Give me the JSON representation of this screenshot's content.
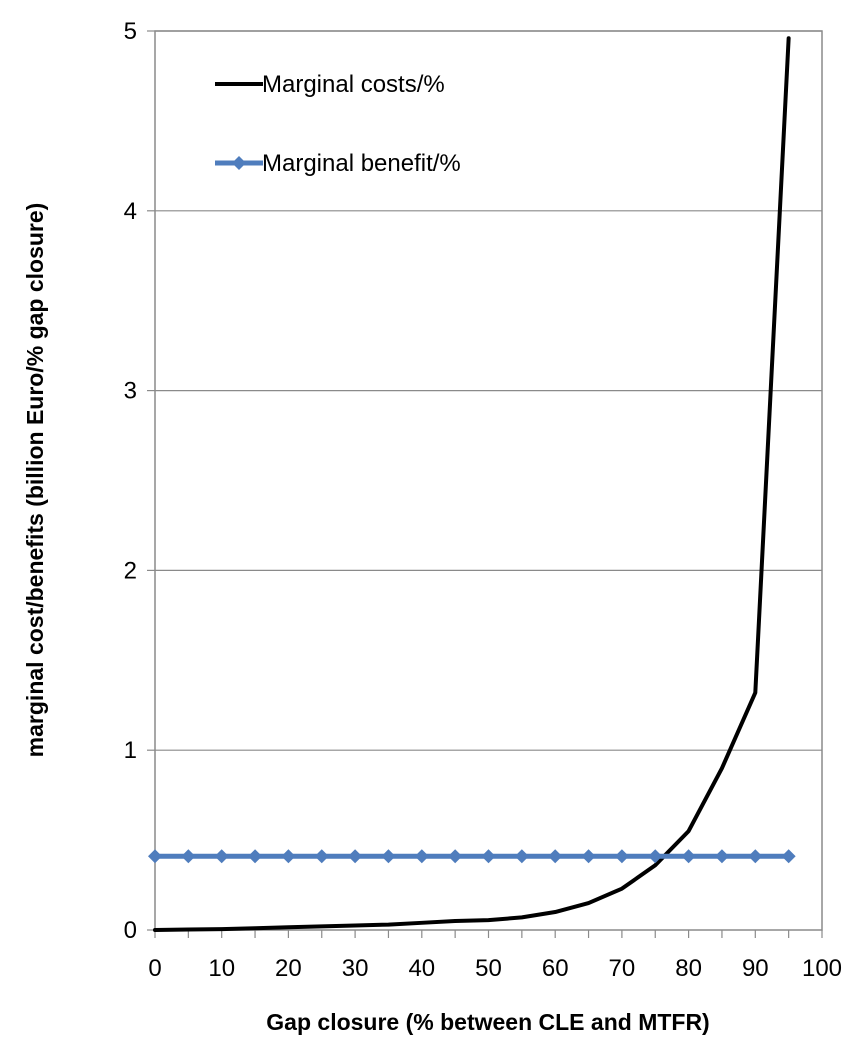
{
  "chart_data": {
    "type": "line",
    "title": "",
    "xlabel": "Gap closure (% between CLE and MTFR)",
    "ylabel": "marginal cost/benefits (billion Euro/% gap closure)",
    "xlim": [
      0,
      100
    ],
    "ylim": [
      0,
      5
    ],
    "x_ticks": [
      0,
      10,
      20,
      30,
      40,
      50,
      60,
      70,
      80,
      90,
      100
    ],
    "y_ticks": [
      0,
      1,
      2,
      3,
      4,
      5
    ],
    "grid": "horizontal",
    "legend_position": "top-left",
    "x": [
      0,
      5,
      10,
      15,
      20,
      25,
      30,
      35,
      40,
      45,
      50,
      55,
      60,
      65,
      70,
      75,
      80,
      85,
      90,
      95
    ],
    "series": [
      {
        "name": "Marginal costs/%",
        "color": "#000000",
        "marker": "none",
        "values": [
          0.0,
          0.003,
          0.005,
          0.01,
          0.015,
          0.02,
          0.025,
          0.03,
          0.04,
          0.05,
          0.055,
          0.07,
          0.1,
          0.15,
          0.23,
          0.36,
          0.55,
          0.9,
          1.32,
          4.96
        ]
      },
      {
        "name": "Marginal benefit/%",
        "color": "#4f7dbd",
        "marker": "diamond",
        "values": [
          0.41,
          0.41,
          0.41,
          0.41,
          0.41,
          0.41,
          0.41,
          0.41,
          0.41,
          0.41,
          0.41,
          0.41,
          0.41,
          0.41,
          0.41,
          0.41,
          0.41,
          0.41,
          0.41,
          0.41
        ]
      }
    ]
  }
}
